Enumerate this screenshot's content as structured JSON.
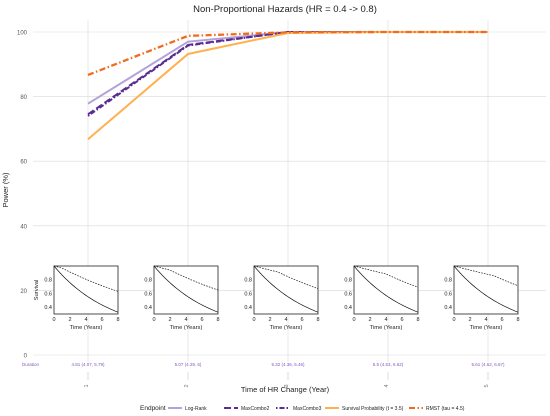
{
  "chart_data": {
    "type": "line",
    "title": "Non-Proportional Hazards (HR = 0.4 -> 0.8)",
    "xlabel": "Time of HR Change (Year)",
    "ylabel": "Power (%)",
    "ylim": [
      0,
      100
    ],
    "yticks": [
      0,
      20,
      40,
      60,
      80,
      100
    ],
    "x": [
      1,
      2,
      3,
      4,
      5
    ],
    "xtick_labels": [
      "1",
      "2",
      "3",
      "4",
      "5"
    ],
    "grid": true,
    "series": [
      {
        "name": "Log-Rank",
        "color": "#b3a2d9",
        "dash": "solid",
        "values": [
          77.8,
          97.0,
          100.0,
          100.0,
          100.0
        ]
      },
      {
        "name": "MaxCombo2",
        "color": "#5a2d91",
        "dash": "longdash",
        "values": [
          74.5,
          96.0,
          100.0,
          100.0,
          100.0
        ]
      },
      {
        "name": "MaxCombo3",
        "color": "#5a2d91",
        "dash": "dotdash",
        "values": [
          74.0,
          95.8,
          100.0,
          100.0,
          100.0
        ]
      },
      {
        "name": "Survival Probability (t = 3.5)",
        "color": "#ffb04f",
        "dash": "solid",
        "values": [
          66.8,
          93.2,
          99.7,
          100.0,
          100.0
        ]
      },
      {
        "name": "RMST (tau = 4.5)",
        "color": "#f26b1d",
        "dash": "dashdot",
        "values": [
          86.7,
          98.8,
          99.9,
          100.0,
          100.0
        ]
      }
    ],
    "legend": {
      "title": "Endpoint",
      "position": "bottom"
    },
    "duration": {
      "label": "Duration",
      "values": [
        "4.81 (4.07, 5.79)",
        "5.07 (4.29, 6)",
        "5.32 (4.36, 6.46)",
        "5.5 (4.53, 6.62)",
        "5.61 (4.62, 6.67)"
      ]
    },
    "insets": {
      "type": "line",
      "xlabel": "Time (Years)",
      "ylabel": "Survival",
      "xticks": [
        0,
        2,
        4,
        6,
        8
      ],
      "yticks": [
        0.4,
        0.6,
        0.8
      ],
      "xlim": [
        0,
        8
      ],
      "ylim": [
        0.3,
        1.0
      ],
      "hr_change_years": [
        1,
        2,
        3,
        4,
        5
      ]
    }
  }
}
